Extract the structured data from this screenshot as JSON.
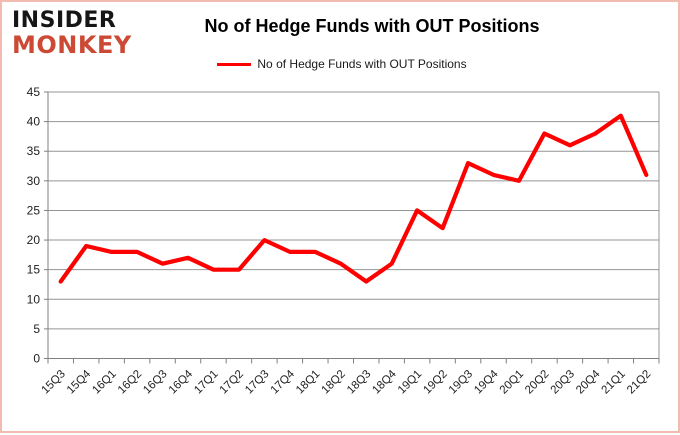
{
  "logo": {
    "line1": "INSIDER",
    "line2": "MONKEY"
  },
  "header": {
    "title": "No of Hedge Funds with OUT Positions"
  },
  "legend": {
    "label": "No of Hedge Funds with OUT Positions"
  },
  "colors": {
    "line": "#ff0000",
    "logo_red": "#cc4a33",
    "grid": "#949494",
    "axis": "#808080",
    "tick_text": "#1f1f1f",
    "page_border": "#f3bab2"
  },
  "chart_data": {
    "type": "line",
    "title": "No of Hedge Funds with OUT Positions",
    "categories": [
      "15Q3",
      "15Q4",
      "16Q1",
      "16Q2",
      "16Q3",
      "16Q4",
      "17Q1",
      "17Q2",
      "17Q3",
      "17Q4",
      "18Q1",
      "18Q2",
      "18Q3",
      "18Q4",
      "19Q1",
      "19Q2",
      "19Q3",
      "19Q4",
      "20Q1",
      "20Q2",
      "20Q3",
      "20Q4",
      "21Q1",
      "21Q2"
    ],
    "series": [
      {
        "name": "No of Hedge Funds with OUT Positions",
        "color": "#ff0000",
        "values": [
          13,
          19,
          18,
          18,
          16,
          17,
          15,
          15,
          20,
          18,
          18,
          16,
          13,
          16,
          25,
          22,
          33,
          31,
          30,
          38,
          36,
          38,
          41,
          31
        ]
      }
    ],
    "xlabel": "",
    "ylabel": "",
    "ylim": [
      0,
      45
    ],
    "ytick_step": 5,
    "grid": true,
    "legend_position": "top-center"
  }
}
